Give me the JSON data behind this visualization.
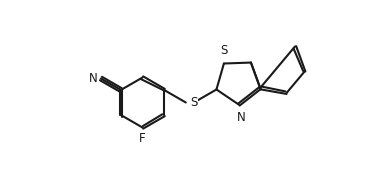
{
  "background_color": "#ffffff",
  "line_color": "#1a1a1a",
  "line_width": 1.5,
  "font_size": 8.5,
  "fig_width": 3.77,
  "fig_height": 1.75,
  "dpi": 100,
  "xlim": [
    0.0,
    7.54
  ],
  "ylim": [
    0.0,
    3.5
  ]
}
